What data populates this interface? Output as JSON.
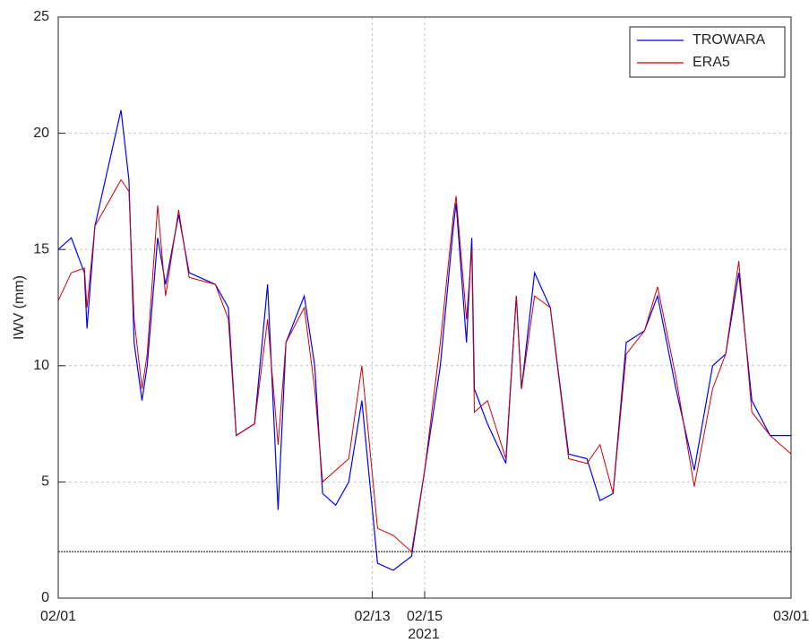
{
  "chart_data": {
    "type": "line",
    "xlabel": "2021",
    "ylabel": "IWV (mm)",
    "x": [
      0,
      0.5,
      1,
      1.1,
      1.4,
      1.9,
      2.4,
      2.7,
      2.9,
      3.2,
      3.4,
      3.8,
      4.1,
      4.6,
      5.0,
      6.0,
      6.5,
      6.8,
      7.5,
      8.0,
      8.4,
      8.7,
      9.4,
      9.8,
      10.1,
      10.6,
      11.1,
      11.6,
      12.2,
      12.8,
      13.5,
      14.0,
      14.6,
      15.1,
      15.2,
      15.6,
      15.8,
      15.9,
      16.4,
      17.1,
      17.5,
      17.7,
      18.2,
      18.8,
      19.5,
      20.2,
      20.7,
      21.2,
      21.7,
      22.4,
      22.9,
      23.6,
      24.3,
      25.0,
      25.5,
      26.0,
      26.5,
      27.2,
      28.0
    ],
    "series": [
      {
        "name": "TROWARA",
        "color": "#0000ff",
        "values": [
          15,
          15.5,
          14,
          11.6,
          16,
          18.5,
          21,
          18,
          11,
          8.5,
          10,
          15.5,
          13.5,
          16.5,
          14,
          13.5,
          12.5,
          7,
          7.5,
          13.5,
          3.8,
          11,
          13,
          10,
          4.5,
          4,
          5,
          8.5,
          1.5,
          1.2,
          1.8,
          5.5,
          10,
          16,
          17,
          11,
          15.5,
          9,
          7.5,
          5.8,
          13,
          9,
          14,
          12.5,
          6.2,
          6.0,
          4.2,
          4.5,
          11,
          11.5,
          13,
          9,
          5.5,
          10,
          10.5,
          14,
          8.5,
          7,
          7
        ]
      },
      {
        "name": "ERA5",
        "color": "#cc0000",
        "values": [
          12.8,
          14,
          14.2,
          12.5,
          16,
          17,
          18,
          17.5,
          12,
          9,
          10.5,
          16.9,
          13,
          16.7,
          13.8,
          13.5,
          12,
          7,
          7.5,
          12,
          6.6,
          11,
          12.5,
          9,
          5,
          5.5,
          6,
          10,
          3,
          2.7,
          2,
          5.5,
          11,
          16.5,
          17.3,
          12,
          15,
          8,
          8.5,
          6,
          13,
          9,
          13,
          12.5,
          6,
          5.8,
          6.6,
          4.5,
          10.5,
          11.5,
          13.4,
          9.5,
          4.8,
          9,
          10.5,
          14.5,
          8,
          7,
          6.2
        ]
      }
    ],
    "xlim": [
      0,
      28
    ],
    "xticks": [
      {
        "value": 0,
        "label": "02/01"
      },
      {
        "value": 12,
        "label": "02/13"
      },
      {
        "value": 14,
        "label": "02/15"
      },
      {
        "value": 28,
        "label": "03/01"
      }
    ],
    "ylim": [
      0,
      25
    ],
    "yticks": [
      0,
      5,
      10,
      15,
      20,
      25
    ],
    "reference_line": 2,
    "grid": true,
    "legend": "upper right"
  }
}
